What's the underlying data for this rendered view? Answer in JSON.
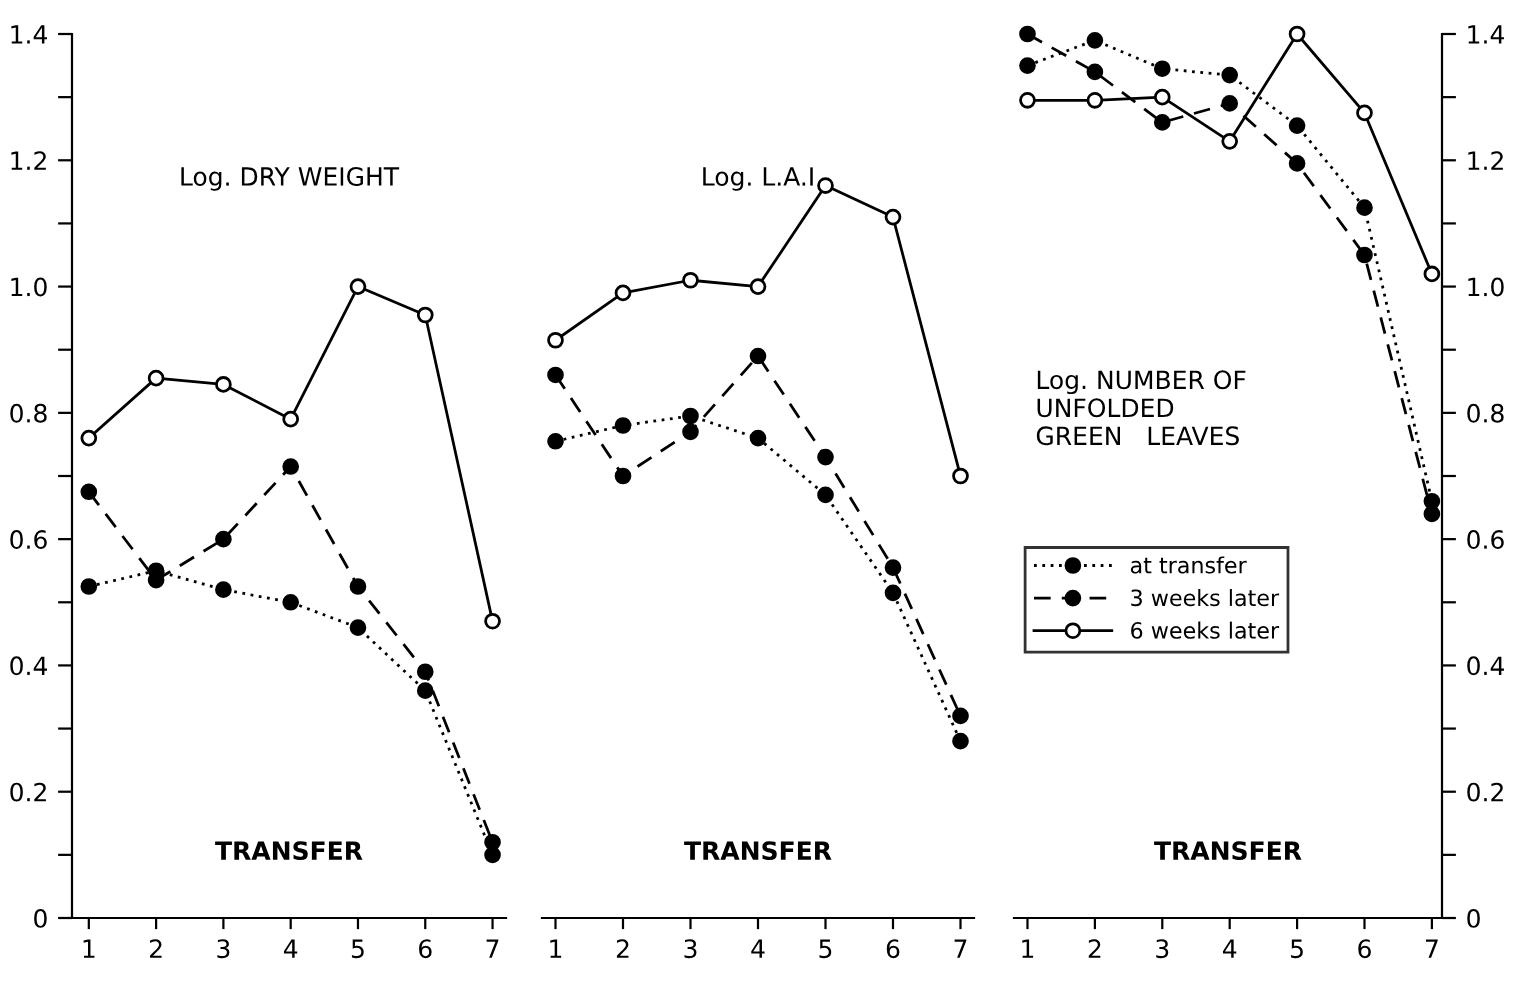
{
  "chart_data": [
    {
      "type": "line",
      "title": "Log. DRY WEIGHT",
      "xlabel": "TRANSFER",
      "x": [
        1,
        2,
        3,
        4,
        5,
        6,
        7
      ],
      "xlim": [
        0.75,
        7.2
      ],
      "xticks": [
        1,
        2,
        3,
        4,
        5,
        6,
        7
      ],
      "ylim": [
        0,
        1.4
      ],
      "yticks": [
        0,
        {
          "value": 0.1,
          "label": null
        },
        0.2,
        {
          "value": 0.3,
          "label": null
        },
        0.4,
        {
          "value": 0.5,
          "label": null
        },
        0.6,
        {
          "value": 0.7,
          "label": null
        },
        0.8,
        {
          "value": 0.9,
          "label": null
        },
        {
          "value": 1.0,
          "label": "1.0"
        },
        {
          "value": 1.1,
          "label": null
        },
        1.2,
        {
          "value": 1.3,
          "label": null
        },
        1.4
      ],
      "marker": "circle",
      "series": [
        {
          "color": "#000000",
          "line_style": "dotted",
          "values": [
            0.525,
            0.55,
            0.52,
            0.5,
            0.46,
            0.36,
            0.1
          ]
        },
        {
          "color": "#000000",
          "line_style": "dashed",
          "values": [
            0.675,
            0.535,
            0.6,
            0.715,
            0.525,
            0.39,
            0.12
          ]
        },
        {
          "color": "#000000",
          "line_style": "solid",
          "values": [
            0.76,
            0.855,
            0.845,
            0.79,
            1.0,
            0.955,
            0.47
          ]
        }
      ]
    },
    {
      "type": "line",
      "title": "Log. L.A.I",
      "xlabel": "TRANSFER",
      "x": [
        1,
        2,
        3,
        4,
        5,
        6,
        7
      ],
      "xlim": [
        0.8,
        7.2
      ],
      "xticks": [
        1,
        2,
        3,
        4,
        5,
        6,
        7
      ],
      "ylim": [
        0,
        1.4
      ],
      "tick_labels": "x",
      "marker": "circle",
      "series": [
        {
          "color": "#000000",
          "line_style": "dotted",
          "values": [
            0.755,
            0.78,
            0.795,
            0.76,
            0.67,
            0.515,
            0.28
          ]
        },
        {
          "color": "#000000",
          "line_style": "dashed",
          "values": [
            0.86,
            0.7,
            0.77,
            0.89,
            0.73,
            0.555,
            0.32
          ]
        },
        {
          "color": "#000000",
          "line_style": "solid",
          "values": [
            0.915,
            0.99,
            1.01,
            1.0,
            1.16,
            1.11,
            0.7
          ]
        }
      ]
    },
    {
      "type": "line",
      "title": "Log. NUMBER OF\nUNFOLDED\nGREEN   LEAVES",
      "xlabel": "TRANSFER",
      "x": [
        1,
        2,
        3,
        4,
        5,
        6,
        7
      ],
      "xlim": [
        0.8,
        7.15
      ],
      "xticks": [
        1,
        2,
        3,
        4,
        5,
        6,
        7
      ],
      "y2lim": [
        0,
        1.4
      ],
      "y2ticks": [
        0,
        {
          "value": 0.1,
          "label": null
        },
        0.2,
        {
          "value": 0.3,
          "label": null
        },
        0.4,
        {
          "value": 0.5,
          "label": null
        },
        0.6,
        {
          "value": 0.7,
          "label": null
        },
        0.8,
        {
          "value": 0.9,
          "label": null
        },
        {
          "value": 1.0,
          "label": "1.0"
        },
        {
          "value": 1.1,
          "label": null
        },
        1.2,
        {
          "value": 1.3,
          "label": null
        },
        1.4
      ],
      "marker": "circle",
      "legend": "left",
      "series": [
        {
          "name": "at transfer",
          "axis": "y2",
          "color": "#000000",
          "line_style": "dotted",
          "values": [
            1.35,
            1.39,
            1.345,
            1.335,
            1.255,
            1.125,
            0.66
          ]
        },
        {
          "name": "3 weeks later",
          "axis": "y2",
          "color": "#000000",
          "line_style": "dashed",
          "values": [
            1.4,
            1.34,
            1.26,
            1.29,
            1.195,
            1.05,
            0.64
          ]
        },
        {
          "name": "6 weeks later",
          "axis": "y2",
          "color": "#000000",
          "line_style": "solid",
          "values": [
            1.295,
            1.295,
            1.3,
            1.23,
            1.4,
            1.275,
            1.02
          ]
        }
      ]
    }
  ]
}
